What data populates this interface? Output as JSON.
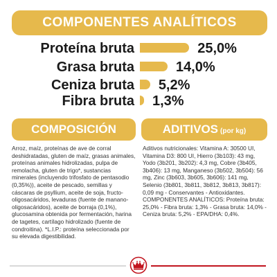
{
  "analytics": {
    "title": "COMPONENTES ANALÍTICOS",
    "rows": [
      {
        "label": "Proteína bruta",
        "value": "25,0%",
        "percent": 25.0
      },
      {
        "label": "Grasa bruta",
        "value": "14,0%",
        "percent": 14.0
      },
      {
        "label": "Ceniza bruta",
        "value": "5,2%",
        "percent": 5.2
      },
      {
        "label": "Fibra bruta",
        "value": "1,3%",
        "percent": 1.3
      }
    ]
  },
  "composition": {
    "title": "COMPOSICIÓN",
    "text": "Arroz, maíz, proteínas de ave de corral deshidratadas, gluten de maíz, grasas animales, proteínas animales hidrolizadas, pulpa de remolacha, gluten de trigo*, sustancias minerales (incluyendo trifosfato de pentasodio (0,35%)), aceite de pescado, semillas y cáscaras de psyllium, aceite de soja, fructo-oligosacáridos, levaduras (fuente de manano-oligosacáridos), aceite de borraja (0,1%), glucosamina obtenida por fermentación, harina de tagetes, cartílago hidrolizado (fuente de condroitina). *L.I.P.: proteína seleccionada por su elevada digestibilidad."
  },
  "additives": {
    "title": "ADITIVOS",
    "unit": "(por kg)",
    "text": "Aditivos nutricionales: Vitamina A: 30500 UI, Vitamina D3: 800 UI, Hierro (3b103): 43 mg, Yodo (3b201, 3b202): 4,3 mg, Cobre (3b405, 3b406): 13 mg, Manganeso (3b502, 3b504): 56 mg, Zinc (3b603, 3b605, 3b606): 141 mg, Selenio (3b801, 3b811, 3b812, 3b813, 3b817): 0,09 mg - Conservantes - Antioxidantes. COMPONENTES ANALÍTICOS: Proteína bruta: 25,0% - Fibra bruta: 1,3% - Grasa bruta: 14,0% - Ceniza bruta: 5,2% - EPA/DHA: 0,4%."
  },
  "footer": {
    "logo_icon": "royal-canin-crown-icon",
    "colors": {
      "brand_red": "#c1141e",
      "accent_gold": "#e6b94c"
    }
  }
}
